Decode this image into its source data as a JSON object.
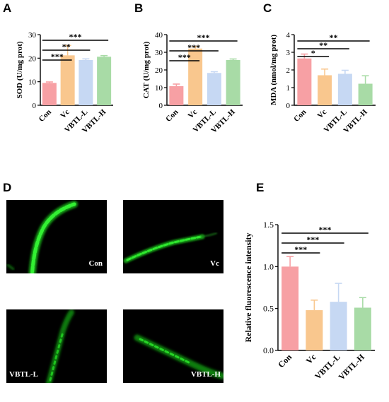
{
  "colors": {
    "Con": "#f7a0a4",
    "Vc": "#f9c78e",
    "VBTL-L": "#c6d8f3",
    "VBTL-H": "#a8dba6",
    "worm": "#22d822"
  },
  "chart_data": [
    {
      "panel": "A",
      "type": "bar",
      "categories": [
        "Con",
        "Vc",
        "VBTL-L",
        "VBTL-H"
      ],
      "values": [
        9.5,
        21.2,
        19.2,
        20.6
      ],
      "errors": [
        0.4,
        4.2,
        0.5,
        0.5
      ],
      "ylabel": "SOD (U/mg prot)",
      "ylim": [
        0,
        30
      ],
      "yticks": [
        "0",
        "10",
        "20",
        "30"
      ],
      "significance": [
        {
          "from": 0,
          "to": 1,
          "label": "***"
        },
        {
          "from": 0,
          "to": 2,
          "label": "**"
        },
        {
          "from": 0,
          "to": 3,
          "label": "***"
        }
      ]
    },
    {
      "panel": "B",
      "type": "bar",
      "categories": [
        "Con",
        "Vc",
        "VBTL-L",
        "VBTL-H"
      ],
      "values": [
        10.8,
        32.1,
        18.3,
        25.6
      ],
      "errors": [
        1.2,
        1.2,
        0.7,
        0.6
      ],
      "ylabel": "CAT (U/mg prot)",
      "ylim": [
        0,
        40
      ],
      "yticks": [
        "0",
        "10",
        "20",
        "30",
        "40"
      ],
      "significance": [
        {
          "from": 0,
          "to": 1,
          "label": "***"
        },
        {
          "from": 0,
          "to": 2,
          "label": "***"
        },
        {
          "from": 0,
          "to": 3,
          "label": "***"
        }
      ]
    },
    {
      "panel": "C",
      "type": "bar",
      "categories": [
        "Con",
        "Vc",
        "VBTL-L",
        "VBTL-H"
      ],
      "values": [
        2.65,
        1.7,
        1.78,
        1.22
      ],
      "errors": [
        0.25,
        0.35,
        0.2,
        0.45
      ],
      "ylabel": "MDA (nmol/mg prot)",
      "ylim": [
        0,
        4
      ],
      "yticks": [
        "0",
        "1",
        "2",
        "3",
        "4"
      ],
      "significance": [
        {
          "from": 0,
          "to": 1,
          "label": "*"
        },
        {
          "from": 0,
          "to": 2,
          "label": "**"
        },
        {
          "from": 0,
          "to": 3,
          "label": "**"
        }
      ]
    },
    {
      "panel": "E",
      "type": "bar",
      "categories": [
        "Con",
        "Vc",
        "VBTL-L",
        "VBTL-H"
      ],
      "values": [
        1.0,
        0.48,
        0.58,
        0.51
      ],
      "errors": [
        0.12,
        0.12,
        0.22,
        0.12
      ],
      "ylabel": "Relative fluorescence intensity",
      "ylim": [
        0,
        1.5
      ],
      "yticks": [
        "0.0",
        "0.5",
        "1.0",
        "1.5"
      ],
      "significance": [
        {
          "from": 0,
          "to": 1,
          "label": "***"
        },
        {
          "from": 0,
          "to": 2,
          "label": "***"
        },
        {
          "from": 0,
          "to": 3,
          "label": "***"
        }
      ]
    }
  ],
  "panel_letters": {
    "A": "A",
    "B": "B",
    "C": "C",
    "D": "D",
    "E": "E"
  },
  "micrographs": {
    "con": "Con",
    "vc": "Vc",
    "vbtl_l": "VBTL-L",
    "vbtl_h": "VBTL-H"
  }
}
